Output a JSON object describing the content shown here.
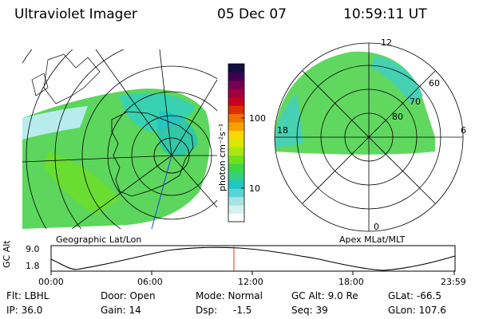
{
  "header": {
    "instrument": "Ultraviolet Imager",
    "date": "05 Dec 07",
    "time": "10:59:11 UT"
  },
  "colorbar": {
    "unit_label": "photon cm⁻²s⁻¹",
    "ticks": [
      "100",
      "10"
    ],
    "colors": [
      "#ffffff",
      "#d8f0f0",
      "#a8e4e4",
      "#58d4d4",
      "#20c8c4",
      "#30d080",
      "#40d840",
      "#70e020",
      "#a8e810",
      "#d8e800",
      "#f8d800",
      "#f8a000",
      "#f07000",
      "#e03000",
      "#c80020",
      "#a00040",
      "#780050",
      "#400050",
      "#101040"
    ]
  },
  "geo_panel": {
    "label": "Geographic Lat/Lon"
  },
  "apex_panel": {
    "label": "Apex MLat/MLT",
    "mlt_labels": [
      "12",
      "6",
      "0",
      "18"
    ],
    "lat_labels": [
      "60",
      "70",
      "80"
    ]
  },
  "altitude_plot": {
    "axis_label": "GC Alt",
    "y_ticks": [
      "9.0",
      "1.8"
    ],
    "x_ticks": [
      "00:00",
      "06:00",
      "12:00",
      "18:00",
      "23:59"
    ],
    "marker_time": "10:59"
  },
  "info": {
    "filter": "Flt: LBHL",
    "ip": "IP: 36.0",
    "door": "Door: Open",
    "gain": "Gain: 14",
    "mode": "Mode: Normal",
    "dsp_label": "Dsp:",
    "dsp_value": "-1.5",
    "gc_alt": "GC Alt: 9.0 Re",
    "seq": "Seq: 39",
    "glat": "GLat: -66.5",
    "glon": "GLon: 107.6"
  }
}
